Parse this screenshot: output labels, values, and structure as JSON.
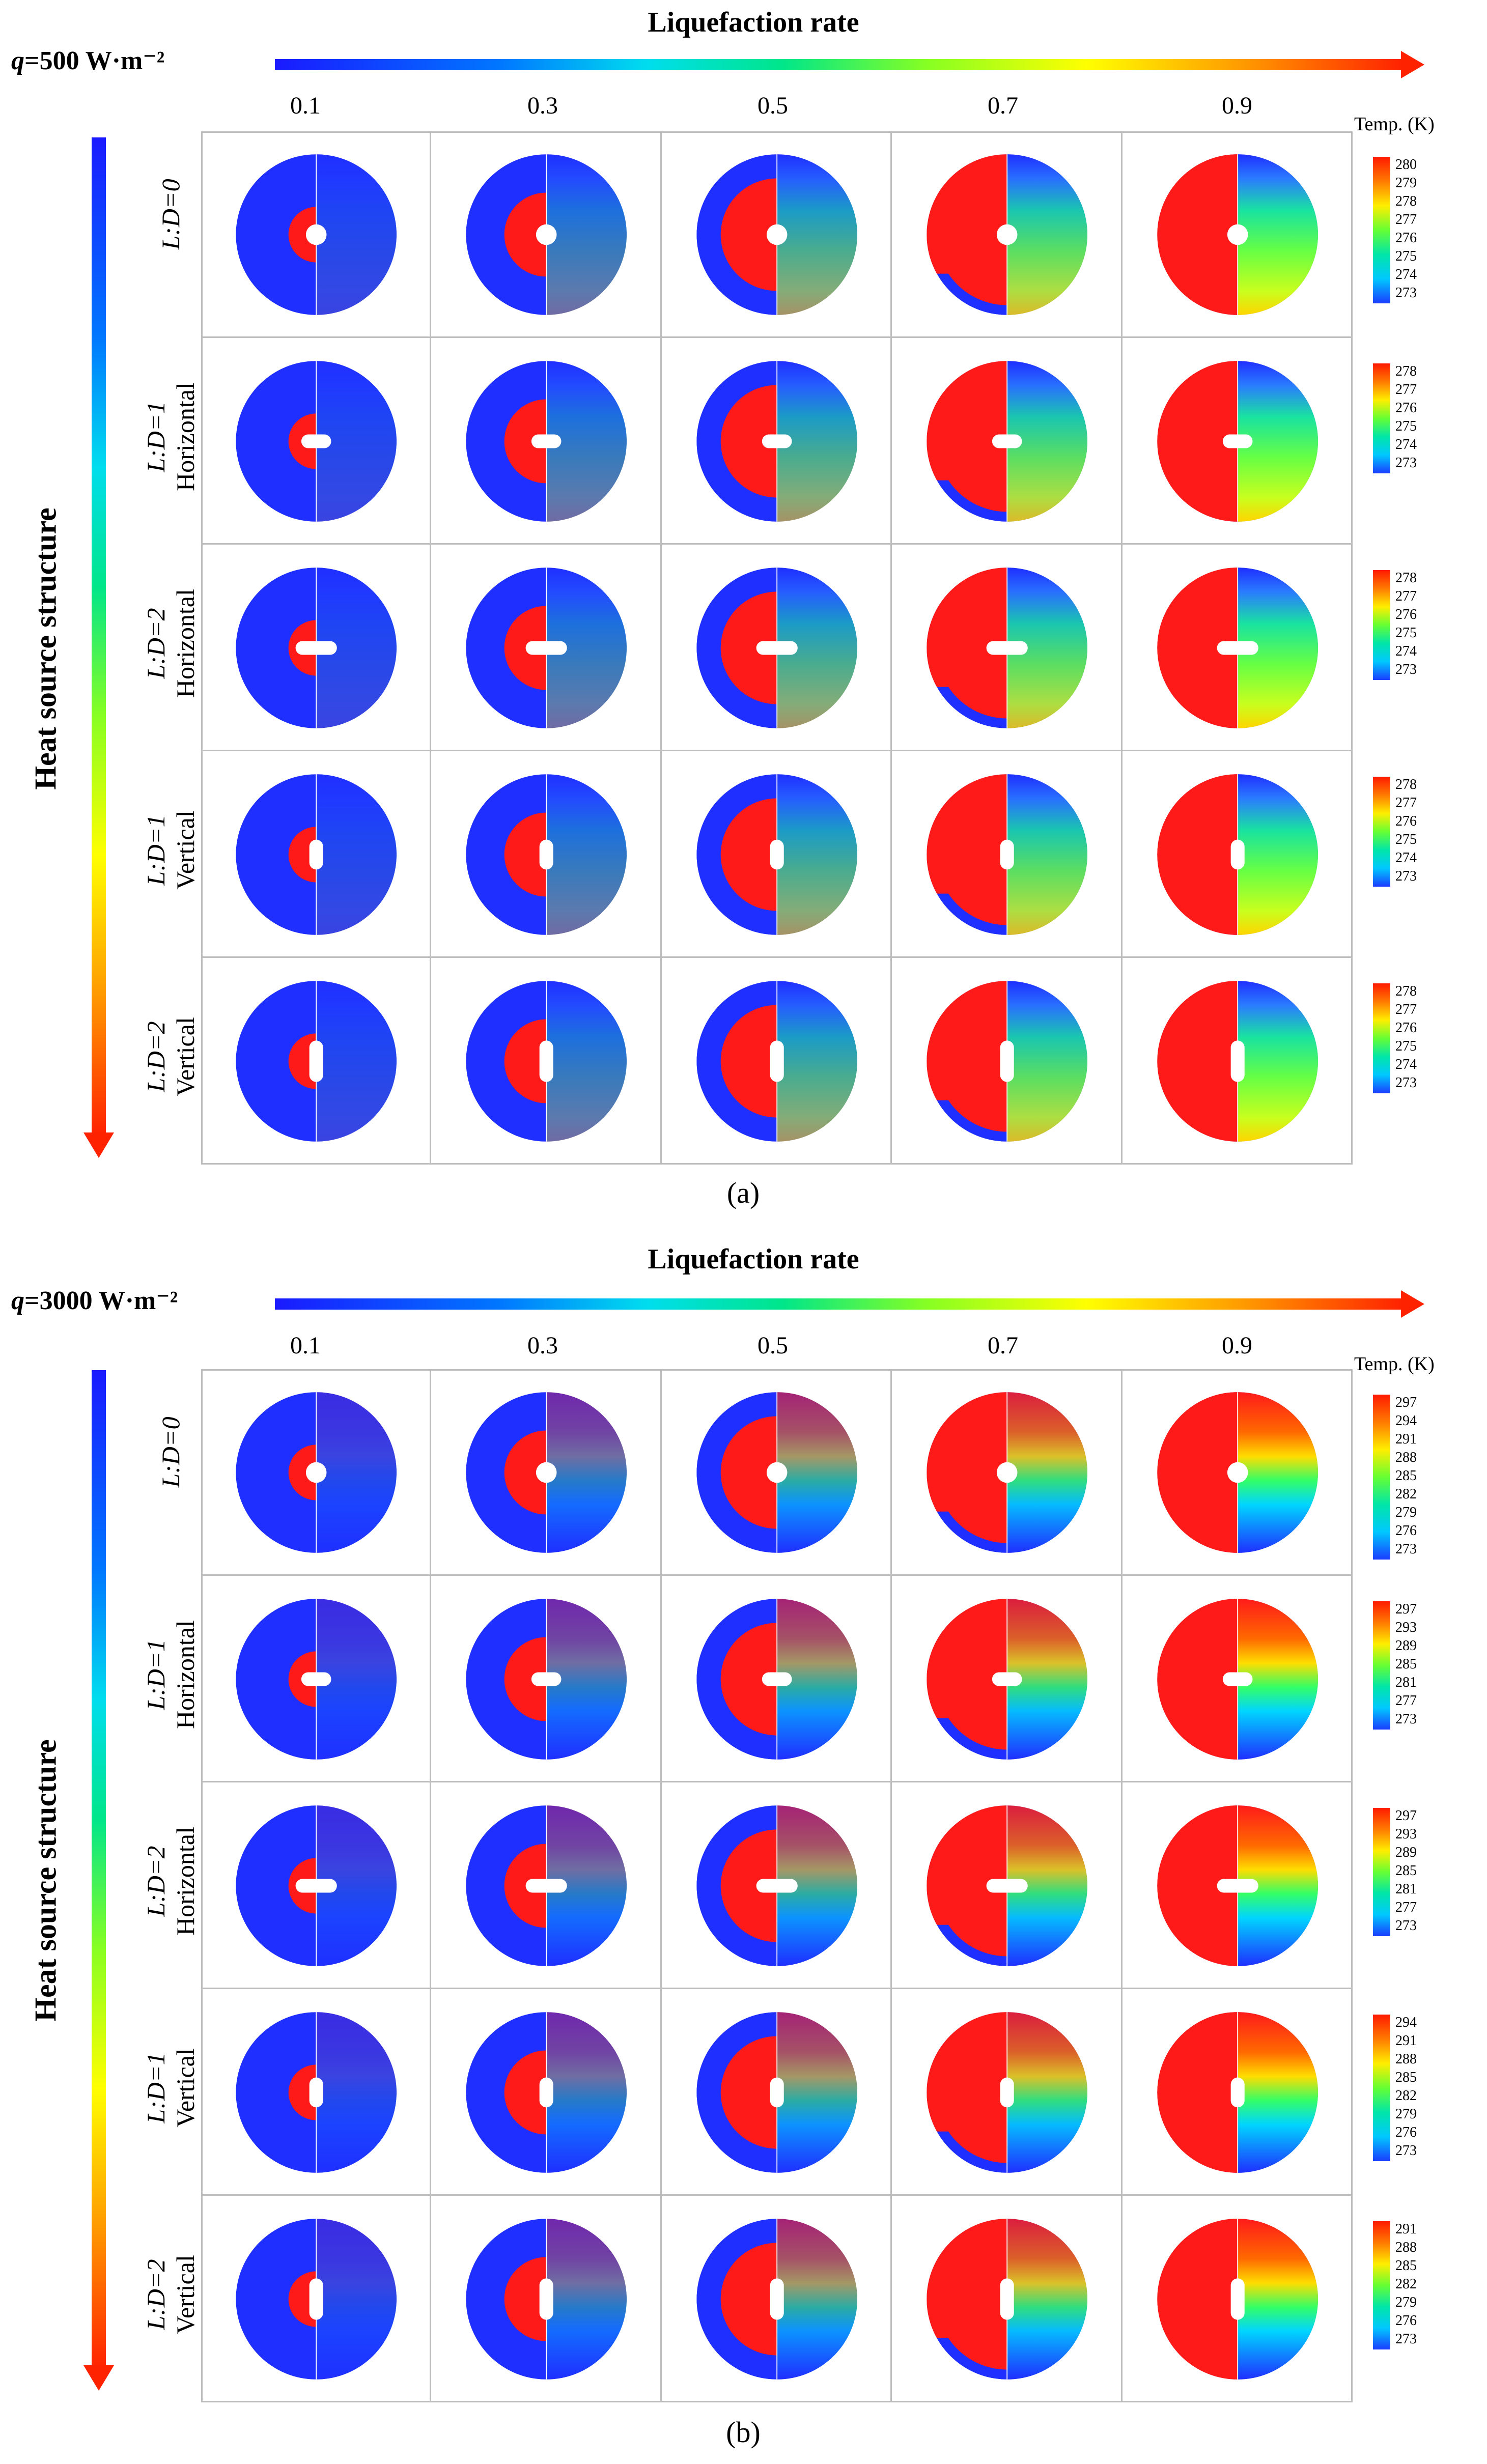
{
  "panels": [
    {
      "id": "a",
      "caption": "(a)",
      "heat_flux_label": "q=500 W·m⁻²",
      "heat_flux_symbol": "q",
      "heat_flux_value": "=500 W·m⁻²",
      "x_axis_title": "Liquefaction rate",
      "x_ticks": [
        "0.1",
        "0.3",
        "0.5",
        "0.7",
        "0.9"
      ],
      "y_axis_title": "Heat source structure",
      "rows": [
        {
          "ratio": "L:D=0",
          "orientation": ""
        },
        {
          "ratio": "L:D=1",
          "orientation": "Horizontal"
        },
        {
          "ratio": "L:D=2",
          "orientation": "Horizontal"
        },
        {
          "ratio": "L:D=1",
          "orientation": "Vertical"
        },
        {
          "ratio": "L:D=2",
          "orientation": "Vertical"
        }
      ],
      "colorbar_title": "Temp. (K)",
      "colorbars": [
        [
          "280",
          "279",
          "278",
          "277",
          "276",
          "275",
          "274",
          "273"
        ],
        [
          "278",
          "277",
          "276",
          "275",
          "274",
          "273"
        ],
        [
          "278",
          "277",
          "276",
          "275",
          "274",
          "273"
        ],
        [
          "278",
          "277",
          "276",
          "275",
          "274",
          "273"
        ],
        [
          "278",
          "277",
          "276",
          "275",
          "274",
          "273"
        ]
      ],
      "liquid_fraction_by_column": [
        0.1,
        0.3,
        0.5,
        0.7,
        0.9
      ]
    },
    {
      "id": "b",
      "caption": "(b)",
      "heat_flux_label": "q=3000 W·m⁻²",
      "heat_flux_symbol": "q",
      "heat_flux_value": "=3000 W·m⁻²",
      "x_axis_title": "Liquefaction rate",
      "x_ticks": [
        "0.1",
        "0.3",
        "0.5",
        "0.7",
        "0.9"
      ],
      "y_axis_title": "Heat source structure",
      "rows": [
        {
          "ratio": "L:D=0",
          "orientation": ""
        },
        {
          "ratio": "L:D=1",
          "orientation": "Horizontal"
        },
        {
          "ratio": "L:D=2",
          "orientation": "Horizontal"
        },
        {
          "ratio": "L:D=1",
          "orientation": "Vertical"
        },
        {
          "ratio": "L:D=2",
          "orientation": "Vertical"
        }
      ],
      "colorbar_title": "Temp. (K)",
      "colorbars": [
        [
          "297",
          "294",
          "291",
          "288",
          "285",
          "282",
          "279",
          "276",
          "273"
        ],
        [
          "297",
          "293",
          "289",
          "285",
          "281",
          "277",
          "273"
        ],
        [
          "297",
          "293",
          "289",
          "285",
          "281",
          "277",
          "273"
        ],
        [
          "294",
          "291",
          "288",
          "285",
          "282",
          "279",
          "276",
          "273"
        ],
        [
          "291",
          "288",
          "285",
          "282",
          "279",
          "276",
          "273"
        ]
      ],
      "liquid_fraction_by_column": [
        0.1,
        0.3,
        0.5,
        0.7,
        0.9
      ]
    }
  ],
  "colors": {
    "gradient": [
      "#1a1aff",
      "#0066ff",
      "#00ccff",
      "#00e68a",
      "#66ff33",
      "#ffff00",
      "#ff9900",
      "#ff2200"
    ],
    "solid": "#1f2fff",
    "liquid": "#ff1a1a",
    "grid": "#bdbdbd"
  }
}
